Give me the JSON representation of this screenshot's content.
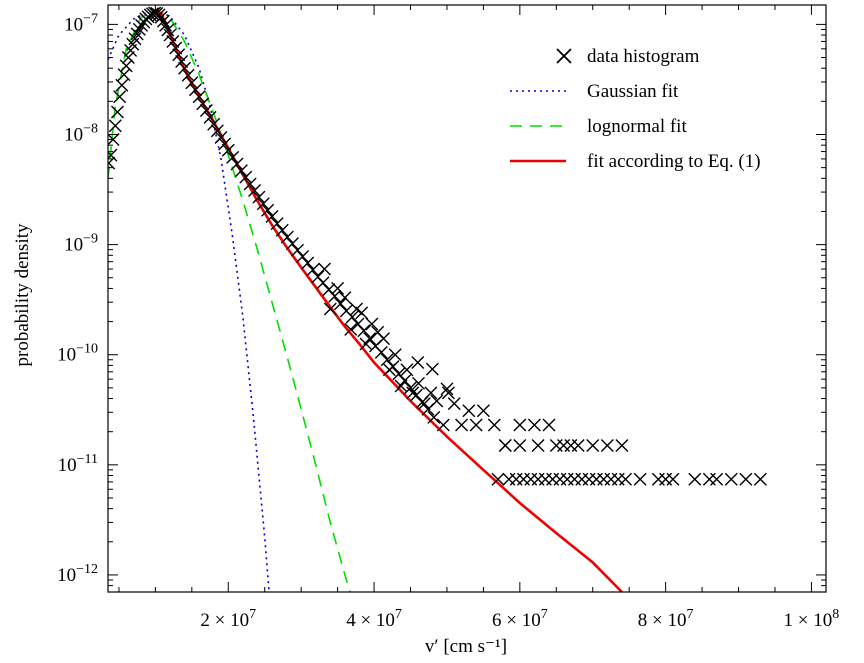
{
  "chart_data": {
    "type": "scatter",
    "title": "",
    "xlabel": "v′ [cm s⁻¹]",
    "ylabel": "probability density",
    "x_scale": "linear",
    "y_scale": "log",
    "xlim": [
      3500000,
      102000000
    ],
    "ylim": [
      7e-13,
      1.5e-07
    ],
    "x_ticks": [
      {
        "value": 20000000,
        "mantissa": "2 × 10",
        "exp": "7"
      },
      {
        "value": 40000000,
        "mantissa": "4 × 10",
        "exp": "7"
      },
      {
        "value": 60000000,
        "mantissa": "6 × 10",
        "exp": "7"
      },
      {
        "value": 80000000,
        "mantissa": "8 × 10",
        "exp": "7"
      },
      {
        "value": 100000000,
        "mantissa": "1 × 10",
        "exp": "8"
      }
    ],
    "y_ticks": [
      {
        "value": 1e-07,
        "base": "10",
        "exp": "−7"
      },
      {
        "value": 1e-08,
        "base": "10",
        "exp": "−8"
      },
      {
        "value": 1e-09,
        "base": "10",
        "exp": "−9"
      },
      {
        "value": 1e-10,
        "base": "10",
        "exp": "−10"
      },
      {
        "value": 1e-11,
        "base": "10",
        "exp": "−11"
      },
      {
        "value": 1e-12,
        "base": "10",
        "exp": "−12"
      }
    ],
    "grid": false,
    "legend_position": "top-right",
    "series": [
      {
        "name": "data histogram",
        "kind": "markers",
        "marker": "x",
        "color": "#000000",
        "points": [
          [
            3600000.0,
            5.5e-09
          ],
          [
            3900000.0,
            6.5e-09
          ],
          [
            4200000.0,
            9e-09
          ],
          [
            4500000.0,
            1.2e-08
          ],
          [
            4800000.0,
            1.6e-08
          ],
          [
            5100000.0,
            2.2e-08
          ],
          [
            5400000.0,
            2.8e-08
          ],
          [
            5700000.0,
            3.5e-08
          ],
          [
            6000000.0,
            4.2e-08
          ],
          [
            6300000.0,
            5e-08
          ],
          [
            6600000.0,
            5.8e-08
          ],
          [
            6900000.0,
            6.6e-08
          ],
          [
            7200000.0,
            7.4e-08
          ],
          [
            7500000.0,
            8.2e-08
          ],
          [
            7800000.0,
            9e-08
          ],
          [
            8100000.0,
            9.8e-08
          ],
          [
            8400000.0,
            1.05e-07
          ],
          [
            8700000.0,
            1.12e-07
          ],
          [
            9000000.0,
            1.17e-07
          ],
          [
            9300000.0,
            1.22e-07
          ],
          [
            9600000.0,
            1.25e-07
          ],
          [
            9900000.0,
            1.27e-07
          ],
          [
            10200000.0,
            1.26e-07
          ],
          [
            10500000.0,
            1.22e-07
          ],
          [
            10800000.0,
            1.16e-07
          ],
          [
            11100000.0,
            1.07e-07
          ],
          [
            11400000.0,
            9.8e-08
          ],
          [
            11700000.0,
            8.9e-08
          ],
          [
            12000000.0,
            8e-08
          ],
          [
            12400000.0,
            7e-08
          ],
          [
            12800000.0,
            6.1e-08
          ],
          [
            13200000.0,
            5.3e-08
          ],
          [
            13600000.0,
            4.6e-08
          ],
          [
            14000000.0,
            4e-08
          ],
          [
            14500000.0,
            3.45e-08
          ],
          [
            15000000.0,
            2.95e-08
          ],
          [
            15500000.0,
            2.55e-08
          ],
          [
            16000000.0,
            2.2e-08
          ],
          [
            16500000.0,
            1.9e-08
          ],
          [
            17000000.0,
            1.65e-08
          ],
          [
            17500000.0,
            1.43e-08
          ],
          [
            18000000.0,
            1.24e-08
          ],
          [
            18500000.0,
            1.08e-08
          ],
          [
            19000000.0,
            9.4e-09
          ],
          [
            19500000.0,
            8.2e-09
          ],
          [
            20000000.0,
            7.2e-09
          ],
          [
            20600000.0,
            6.2e-09
          ],
          [
            21200000.0,
            5.4e-09
          ],
          [
            21800000.0,
            4.7e-09
          ],
          [
            22400000.0,
            4.1e-09
          ],
          [
            23000000.0,
            3.55e-09
          ],
          [
            23600000.0,
            3.1e-09
          ],
          [
            24200000.0,
            2.7e-09
          ],
          [
            24800000.0,
            2.35e-09
          ],
          [
            25400000.0,
            2.05e-09
          ],
          [
            26000000.0,
            1.8e-09
          ],
          [
            26700000.0,
            1.55e-09
          ],
          [
            27400000.0,
            1.35e-09
          ],
          [
            28100000.0,
            1.17e-09
          ],
          [
            28800000.0,
            1.02e-09
          ],
          [
            29500000.0,
            8.9e-10
          ],
          [
            30200000.0,
            7.8e-10
          ],
          [
            30900000.0,
            6.8e-10
          ],
          [
            31600000.0,
            5.9e-10
          ],
          [
            32300000.0,
            5.1e-10
          ],
          [
            33000000.0,
            4.5e-10
          ],
          [
            33800000.0,
            3.9e-10
          ],
          [
            34600000.0,
            3.4e-10
          ],
          [
            35400000.0,
            2.9e-10
          ],
          [
            36200000.0,
            2.5e-10
          ],
          [
            37000000.0,
            2.2e-10
          ],
          [
            37800000.0,
            1.9e-10
          ],
          [
            38600000.0,
            1.65e-10
          ],
          [
            39400000.0,
            1.4e-10
          ],
          [
            40200000.0,
            1.2e-10
          ],
          [
            41000000.0,
            1.05e-10
          ],
          [
            41800000.0,
            9e-11
          ],
          [
            42600000.0,
            7.8e-11
          ],
          [
            43400000.0,
            6.7e-11
          ],
          [
            44200000.0,
            5.8e-11
          ],
          [
            45000000.0,
            5e-11
          ],
          [
            45800000.0,
            4.3e-11
          ],
          [
            46600000.0,
            3.7e-11
          ],
          [
            47400000.0,
            3.2e-11
          ],
          [
            48200000.0,
            2.7e-11
          ],
          [
            33200000.0,
            6e-10
          ],
          [
            34000000.0,
            2.6e-10
          ],
          [
            35000000.0,
            4e-10
          ],
          [
            36000000.0,
            3.3e-10
          ],
          [
            36800000.0,
            1.7e-10
          ],
          [
            37600000.0,
            2.6e-10
          ],
          [
            38300000.0,
            2.4e-10
          ],
          [
            38900000.0,
            1.25e-10
          ],
          [
            39700000.0,
            1.9e-10
          ],
          [
            40500000.0,
            1.6e-10
          ],
          [
            41300000.0,
            1.4e-10
          ],
          [
            42100000.0,
            7.3e-11
          ],
          [
            42900000.0,
            1e-10
          ],
          [
            43700000.0,
            5.2e-11
          ],
          [
            44500000.0,
            7.3e-11
          ],
          [
            45300000.0,
            4.5e-11
          ],
          [
            46100000.0,
            5.5e-11
          ],
          [
            46900000.0,
            3.6e-11
          ],
          [
            47800000.0,
            4.5e-11
          ],
          [
            48600000.0,
            3.8e-11
          ],
          [
            49500000.0,
            2.3e-11
          ],
          [
            50200000.0,
            4.5e-11
          ],
          [
            51000000.0,
            3.6e-11
          ],
          [
            52000000.0,
            2.3e-11
          ],
          [
            53000000.0,
            3.1e-11
          ],
          [
            54000000.0,
            2.3e-11
          ],
          [
            55000000.0,
            3.1e-11
          ],
          [
            56500000.0,
            2.3e-11
          ],
          [
            58000000.0,
            1.5e-11
          ],
          [
            60000000.0,
            2.3e-11
          ],
          [
            62000000.0,
            2.3e-11
          ],
          [
            64000000.0,
            2.3e-11
          ],
          [
            66000000.0,
            1.5e-11
          ],
          [
            48000000.0,
            7.4e-11
          ],
          [
            50000000.0,
            4.9e-11
          ],
          [
            46000000.0,
            8.5e-11
          ],
          [
            58000000.0,
            1.5e-11
          ],
          [
            60000000.0,
            1.5e-11
          ],
          [
            62500000.0,
            1.5e-11
          ],
          [
            65000000.0,
            1.5e-11
          ],
          [
            67000000.0,
            1.5e-11
          ],
          [
            68000000.0,
            1.5e-11
          ],
          [
            70000000.0,
            1.5e-11
          ],
          [
            72000000.0,
            1.5e-11
          ],
          [
            74000000.0,
            1.5e-11
          ],
          [
            57000000.0,
            7.4e-12
          ],
          [
            58500000.0,
            7.4e-12
          ],
          [
            59500000.0,
            7.4e-12
          ],
          [
            60500000.0,
            7.4e-12
          ],
          [
            61500000.0,
            7.4e-12
          ],
          [
            62500000.0,
            7.4e-12
          ],
          [
            63500000.0,
            7.4e-12
          ],
          [
            64500000.0,
            7.4e-12
          ],
          [
            65500000.0,
            7.4e-12
          ],
          [
            66500000.0,
            7.4e-12
          ],
          [
            67500000.0,
            7.4e-12
          ],
          [
            68500000.0,
            7.4e-12
          ],
          [
            69500000.0,
            7.4e-12
          ],
          [
            70500000.0,
            7.4e-12
          ],
          [
            71500000.0,
            7.4e-12
          ],
          [
            72500000.0,
            7.4e-12
          ],
          [
            73500000.0,
            7.4e-12
          ],
          [
            74500000.0,
            7.4e-12
          ],
          [
            76500000.0,
            7.4e-12
          ],
          [
            79000000.0,
            7.4e-12
          ],
          [
            80000000.0,
            7.4e-12
          ],
          [
            81000000.0,
            7.4e-12
          ],
          [
            84000000.0,
            7.4e-12
          ],
          [
            86000000.0,
            7.4e-12
          ],
          [
            87000000.0,
            7.4e-12
          ],
          [
            89000000.0,
            7.4e-12
          ],
          [
            91000000.0,
            7.4e-12
          ],
          [
            93000000.0,
            7.4e-12
          ]
        ]
      },
      {
        "name": "Gaussian fit",
        "kind": "line",
        "style": "dotted",
        "color": "#0000cc",
        "points": [
          [
            3500000.0,
            4.8e-08
          ],
          [
            5000000.0,
            8e-08
          ],
          [
            7000000.0,
            1.12e-07
          ],
          [
            9000000.0,
            1.3e-07
          ],
          [
            10300000.0,
            1.32e-07
          ],
          [
            12000000.0,
            1.18e-07
          ],
          [
            14000000.0,
            8e-08
          ],
          [
            16000000.0,
            4e-08
          ],
          [
            17500000.0,
            1.8e-08
          ],
          [
            19000000.0,
            6e-09
          ],
          [
            20500000.0,
            1.3e-09
          ],
          [
            22000000.0,
            2.2e-10
          ],
          [
            23500000.0,
            2.5e-11
          ],
          [
            25000000.0,
            2.2e-12
          ],
          [
            25600000.0,
            7e-13
          ]
        ]
      },
      {
        "name": "lognormal fit",
        "kind": "line",
        "style": "dashed",
        "color": "#00dd00",
        "points": [
          [
            3500000.0,
            4e-09
          ],
          [
            4500000.0,
            1.8e-08
          ],
          [
            6000000.0,
            6e-08
          ],
          [
            8000000.0,
            1.15e-07
          ],
          [
            10000000.0,
            1.35e-07
          ],
          [
            12000000.0,
            1.15e-07
          ],
          [
            14000000.0,
            7e-08
          ],
          [
            16000000.0,
            3.5e-08
          ],
          [
            18000000.0,
            1.55e-08
          ],
          [
            20000000.0,
            6.5e-09
          ],
          [
            22000000.0,
            2.5e-09
          ],
          [
            24000000.0,
            9e-10
          ],
          [
            26000000.0,
            3e-10
          ],
          [
            28000000.0,
            1e-10
          ],
          [
            30000000.0,
            3.2e-11
          ],
          [
            32000000.0,
            1e-11
          ],
          [
            34000000.0,
            3e-12
          ],
          [
            36000000.0,
            1e-12
          ],
          [
            36700000.0,
            7e-13
          ]
        ]
      },
      {
        "name": "fit according to Eq. (1)",
        "kind": "line",
        "style": "solid",
        "color": "#ee0000",
        "points": [
          [
            10200000.0,
            1.38e-07
          ],
          [
            11000000.0,
            1.18e-07
          ],
          [
            12000000.0,
            8.2e-08
          ],
          [
            13000000.0,
            5.6e-08
          ],
          [
            14000000.0,
            3.9e-08
          ],
          [
            15000000.0,
            2.9e-08
          ],
          [
            16000000.0,
            2.2e-08
          ],
          [
            18000000.0,
            1.3e-08
          ],
          [
            20000000.0,
            7.5e-09
          ],
          [
            22000000.0,
            4.3e-09
          ],
          [
            24000000.0,
            2.5e-09
          ],
          [
            26000000.0,
            1.5e-09
          ],
          [
            28000000.0,
            9.5e-10
          ],
          [
            30000000.0,
            6.2e-10
          ],
          [
            32000000.0,
            4.1e-10
          ],
          [
            34000000.0,
            2.7e-10
          ],
          [
            36000000.0,
            1.8e-10
          ],
          [
            38000000.0,
            1.25e-10
          ],
          [
            40000000.0,
            8.5e-11
          ],
          [
            45000000.0,
            3.8e-11
          ],
          [
            50000000.0,
            1.8e-11
          ],
          [
            55000000.0,
            9e-12
          ],
          [
            60000000.0,
            4.5e-12
          ],
          [
            65000000.0,
            2.4e-12
          ],
          [
            70000000.0,
            1.3e-12
          ],
          [
            74000000.0,
            7e-13
          ]
        ]
      }
    ]
  }
}
